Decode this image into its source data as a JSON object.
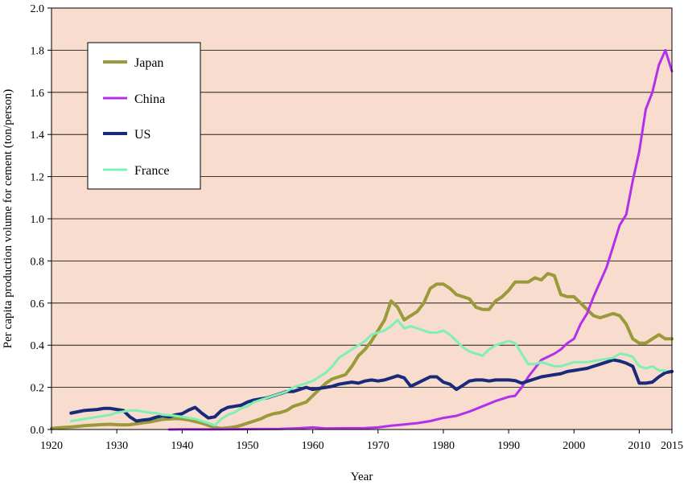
{
  "chart_data": {
    "type": "line",
    "xlabel": "Year",
    "ylabel": "Per capita production volume for cement (ton/person)",
    "xlim": [
      1920,
      2015
    ],
    "ylim": [
      0,
      2.0
    ],
    "x_ticks": [
      1920,
      1930,
      1940,
      1950,
      1960,
      1970,
      1980,
      1990,
      2000,
      2010,
      2015
    ],
    "y_ticks": [
      "0.0",
      "0.2",
      "0.4",
      "0.6",
      "0.8",
      "1.0",
      "1.2",
      "1.4",
      "1.6",
      "1.8",
      "2.0"
    ],
    "grid": "horizontal",
    "legend_position": "top-left",
    "plot_background": "#f8dccd",
    "series": [
      {
        "name": "Japan",
        "color": "#9a9a3a",
        "x": [
          1920,
          1921,
          1922,
          1923,
          1924,
          1925,
          1926,
          1927,
          1928,
          1929,
          1930,
          1931,
          1932,
          1933,
          1934,
          1935,
          1936,
          1937,
          1938,
          1939,
          1940,
          1941,
          1942,
          1943,
          1944,
          1945,
          1946,
          1947,
          1948,
          1949,
          1950,
          1951,
          1952,
          1953,
          1954,
          1955,
          1956,
          1957,
          1958,
          1959,
          1960,
          1961,
          1962,
          1963,
          1964,
          1965,
          1966,
          1967,
          1968,
          1969,
          1970,
          1971,
          1972,
          1973,
          1974,
          1975,
          1976,
          1977,
          1978,
          1979,
          1980,
          1981,
          1982,
          1983,
          1984,
          1985,
          1986,
          1987,
          1988,
          1989,
          1990,
          1991,
          1992,
          1993,
          1994,
          1995,
          1996,
          1997,
          1998,
          1999,
          2000,
          2001,
          2002,
          2003,
          2004,
          2005,
          2006,
          2007,
          2008,
          2009,
          2010,
          2011,
          2012,
          2013,
          2014,
          2015
        ],
        "values": [
          0.005,
          0.008,
          0.01,
          0.012,
          0.015,
          0.018,
          0.02,
          0.022,
          0.024,
          0.025,
          0.023,
          0.022,
          0.023,
          0.027,
          0.032,
          0.036,
          0.042,
          0.048,
          0.05,
          0.052,
          0.05,
          0.045,
          0.038,
          0.03,
          0.02,
          0.01,
          0.005,
          0.008,
          0.012,
          0.02,
          0.03,
          0.04,
          0.05,
          0.065,
          0.075,
          0.08,
          0.09,
          0.11,
          0.12,
          0.13,
          0.16,
          0.19,
          0.22,
          0.24,
          0.25,
          0.26,
          0.3,
          0.35,
          0.38,
          0.42,
          0.47,
          0.52,
          0.61,
          0.58,
          0.52,
          0.54,
          0.56,
          0.6,
          0.67,
          0.69,
          0.69,
          0.67,
          0.64,
          0.63,
          0.62,
          0.58,
          0.57,
          0.57,
          0.61,
          0.63,
          0.66,
          0.7,
          0.7,
          0.7,
          0.72,
          0.71,
          0.74,
          0.73,
          0.64,
          0.63,
          0.63,
          0.6,
          0.57,
          0.54,
          0.53,
          0.54,
          0.55,
          0.54,
          0.5,
          0.43,
          0.41,
          0.41,
          0.43,
          0.45,
          0.43,
          0.43
        ]
      },
      {
        "name": "China",
        "color": "#b230e8",
        "x": [
          1938,
          1940,
          1945,
          1950,
          1955,
          1958,
          1960,
          1962,
          1965,
          1968,
          1970,
          1972,
          1974,
          1976,
          1978,
          1980,
          1982,
          1984,
          1986,
          1988,
          1990,
          1991,
          1992,
          1993,
          1994,
          1995,
          1996,
          1997,
          1998,
          1999,
          2000,
          2001,
          2002,
          2003,
          2004,
          2005,
          2006,
          2007,
          2008,
          2009,
          2010,
          2011,
          2012,
          2013,
          2014,
          2015
        ],
        "values": [
          0.0,
          0.001,
          0.001,
          0.002,
          0.003,
          0.006,
          0.01,
          0.005,
          0.006,
          0.007,
          0.01,
          0.018,
          0.024,
          0.03,
          0.04,
          0.055,
          0.065,
          0.085,
          0.11,
          0.135,
          0.155,
          0.16,
          0.2,
          0.25,
          0.29,
          0.33,
          0.345,
          0.36,
          0.38,
          0.41,
          0.43,
          0.5,
          0.55,
          0.63,
          0.7,
          0.77,
          0.87,
          0.97,
          1.02,
          1.18,
          1.32,
          1.52,
          1.6,
          1.73,
          1.8,
          1.7
        ]
      },
      {
        "name": "US",
        "color": "#1a2a7a",
        "x": [
          1923,
          1925,
          1927,
          1928,
          1929,
          1930,
          1931,
          1932,
          1933,
          1934,
          1935,
          1936,
          1937,
          1938,
          1939,
          1940,
          1941,
          1942,
          1943,
          1944,
          1945,
          1946,
          1947,
          1948,
          1949,
          1950,
          1951,
          1952,
          1953,
          1954,
          1955,
          1956,
          1957,
          1958,
          1959,
          1960,
          1961,
          1962,
          1963,
          1964,
          1965,
          1966,
          1967,
          1968,
          1969,
          1970,
          1971,
          1972,
          1973,
          1974,
          1975,
          1976,
          1977,
          1978,
          1979,
          1980,
          1981,
          1982,
          1983,
          1984,
          1985,
          1986,
          1987,
          1988,
          1989,
          1990,
          1991,
          1992,
          1993,
          1994,
          1995,
          1996,
          1997,
          1998,
          1999,
          2000,
          2001,
          2002,
          2003,
          2004,
          2005,
          2006,
          2007,
          2008,
          2009,
          2010,
          2011,
          2012,
          2013,
          2014,
          2015
        ],
        "values": [
          0.078,
          0.09,
          0.095,
          0.1,
          0.1,
          0.095,
          0.09,
          0.06,
          0.04,
          0.045,
          0.048,
          0.058,
          0.065,
          0.06,
          0.07,
          0.075,
          0.092,
          0.105,
          0.078,
          0.055,
          0.06,
          0.09,
          0.105,
          0.11,
          0.115,
          0.13,
          0.14,
          0.145,
          0.15,
          0.16,
          0.17,
          0.18,
          0.18,
          0.19,
          0.2,
          0.19,
          0.195,
          0.2,
          0.205,
          0.215,
          0.22,
          0.225,
          0.22,
          0.23,
          0.235,
          0.23,
          0.235,
          0.245,
          0.255,
          0.245,
          0.205,
          0.22,
          0.235,
          0.25,
          0.25,
          0.225,
          0.215,
          0.19,
          0.21,
          0.23,
          0.235,
          0.235,
          0.23,
          0.235,
          0.235,
          0.235,
          0.232,
          0.22,
          0.23,
          0.24,
          0.25,
          0.255,
          0.26,
          0.265,
          0.275,
          0.28,
          0.285,
          0.29,
          0.3,
          0.31,
          0.32,
          0.33,
          0.325,
          0.315,
          0.3,
          0.22,
          0.22,
          0.225,
          0.25,
          0.27,
          0.275
        ]
      },
      {
        "name": "France",
        "color": "#7ff0b4",
        "x": [
          1923,
          1925,
          1927,
          1928,
          1929,
          1930,
          1931,
          1932,
          1933,
          1934,
          1935,
          1936,
          1937,
          1938,
          1939,
          1940,
          1941,
          1942,
          1943,
          1944,
          1945,
          1946,
          1947,
          1948,
          1949,
          1950,
          1951,
          1952,
          1953,
          1954,
          1955,
          1956,
          1957,
          1958,
          1959,
          1960,
          1961,
          1962,
          1963,
          1964,
          1965,
          1966,
          1967,
          1968,
          1969,
          1970,
          1971,
          1972,
          1973,
          1974,
          1975,
          1976,
          1977,
          1978,
          1979,
          1980,
          1981,
          1982,
          1983,
          1984,
          1985,
          1986,
          1987,
          1988,
          1989,
          1990,
          1991,
          1992,
          1993,
          1994,
          1995,
          1996,
          1997,
          1998,
          1999,
          2000,
          2001,
          2002,
          2003,
          2004,
          2005,
          2006,
          2007,
          2008,
          2009,
          2010,
          2011,
          2012,
          2013,
          2014
        ],
        "values": [
          0.04,
          0.05,
          0.06,
          0.065,
          0.07,
          0.08,
          0.085,
          0.09,
          0.09,
          0.085,
          0.08,
          0.078,
          0.07,
          0.068,
          0.065,
          0.06,
          0.055,
          0.05,
          0.04,
          0.03,
          0.02,
          0.05,
          0.07,
          0.08,
          0.1,
          0.11,
          0.13,
          0.14,
          0.15,
          0.16,
          0.17,
          0.18,
          0.2,
          0.21,
          0.22,
          0.23,
          0.25,
          0.27,
          0.3,
          0.34,
          0.36,
          0.38,
          0.4,
          0.42,
          0.45,
          0.46,
          0.47,
          0.49,
          0.52,
          0.48,
          0.49,
          0.48,
          0.47,
          0.46,
          0.46,
          0.47,
          0.45,
          0.42,
          0.39,
          0.37,
          0.36,
          0.35,
          0.38,
          0.4,
          0.41,
          0.42,
          0.41,
          0.36,
          0.31,
          0.31,
          0.32,
          0.31,
          0.3,
          0.3,
          0.31,
          0.32,
          0.32,
          0.32,
          0.325,
          0.33,
          0.335,
          0.34,
          0.36,
          0.355,
          0.345,
          0.3,
          0.29,
          0.3,
          0.28,
          0.28
        ]
      }
    ]
  }
}
